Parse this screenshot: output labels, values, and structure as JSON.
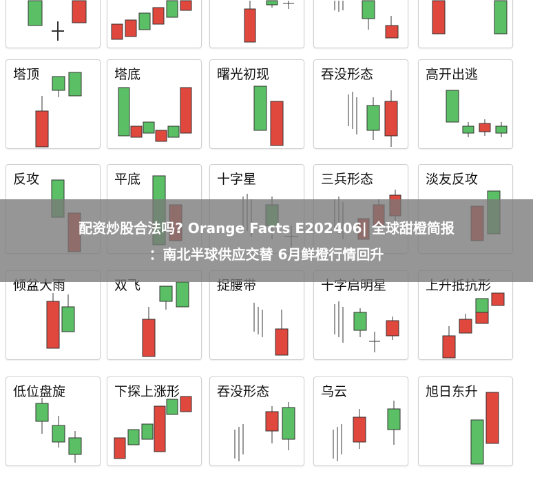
{
  "colors": {
    "bull_red": "#e0473d",
    "bear_green": "#5bbf65",
    "candle_stroke": "#333333",
    "banner_bg": "#7a7a7a"
  },
  "patterns": [
    {
      "label": "塔顶"
    },
    {
      "label": "塔底"
    },
    {
      "label": "曙光初现"
    },
    {
      "label": "吞没形态"
    },
    {
      "label": "高开出逃"
    },
    {
      "label": "反攻"
    },
    {
      "label": "平底"
    },
    {
      "label": "十字星"
    },
    {
      "label": "三兵形态"
    },
    {
      "label": "淡友反攻"
    },
    {
      "label": "倾盆大雨"
    },
    {
      "label": "双飞"
    },
    {
      "label": "捉腰带"
    },
    {
      "label": "十字启明星"
    },
    {
      "label": "上升抵抗形"
    },
    {
      "label": "低位盘旋"
    },
    {
      "label": "下探上涨形"
    },
    {
      "label": "吞没形态"
    },
    {
      "label": "乌云"
    },
    {
      "label": "旭日东升"
    }
  ],
  "banner": {
    "line1": "配资炒股合法吗? Orange Facts E202406| 全球甜橙简报",
    "line2": "：南北半球供应交替 6月鲜橙行情回升"
  }
}
